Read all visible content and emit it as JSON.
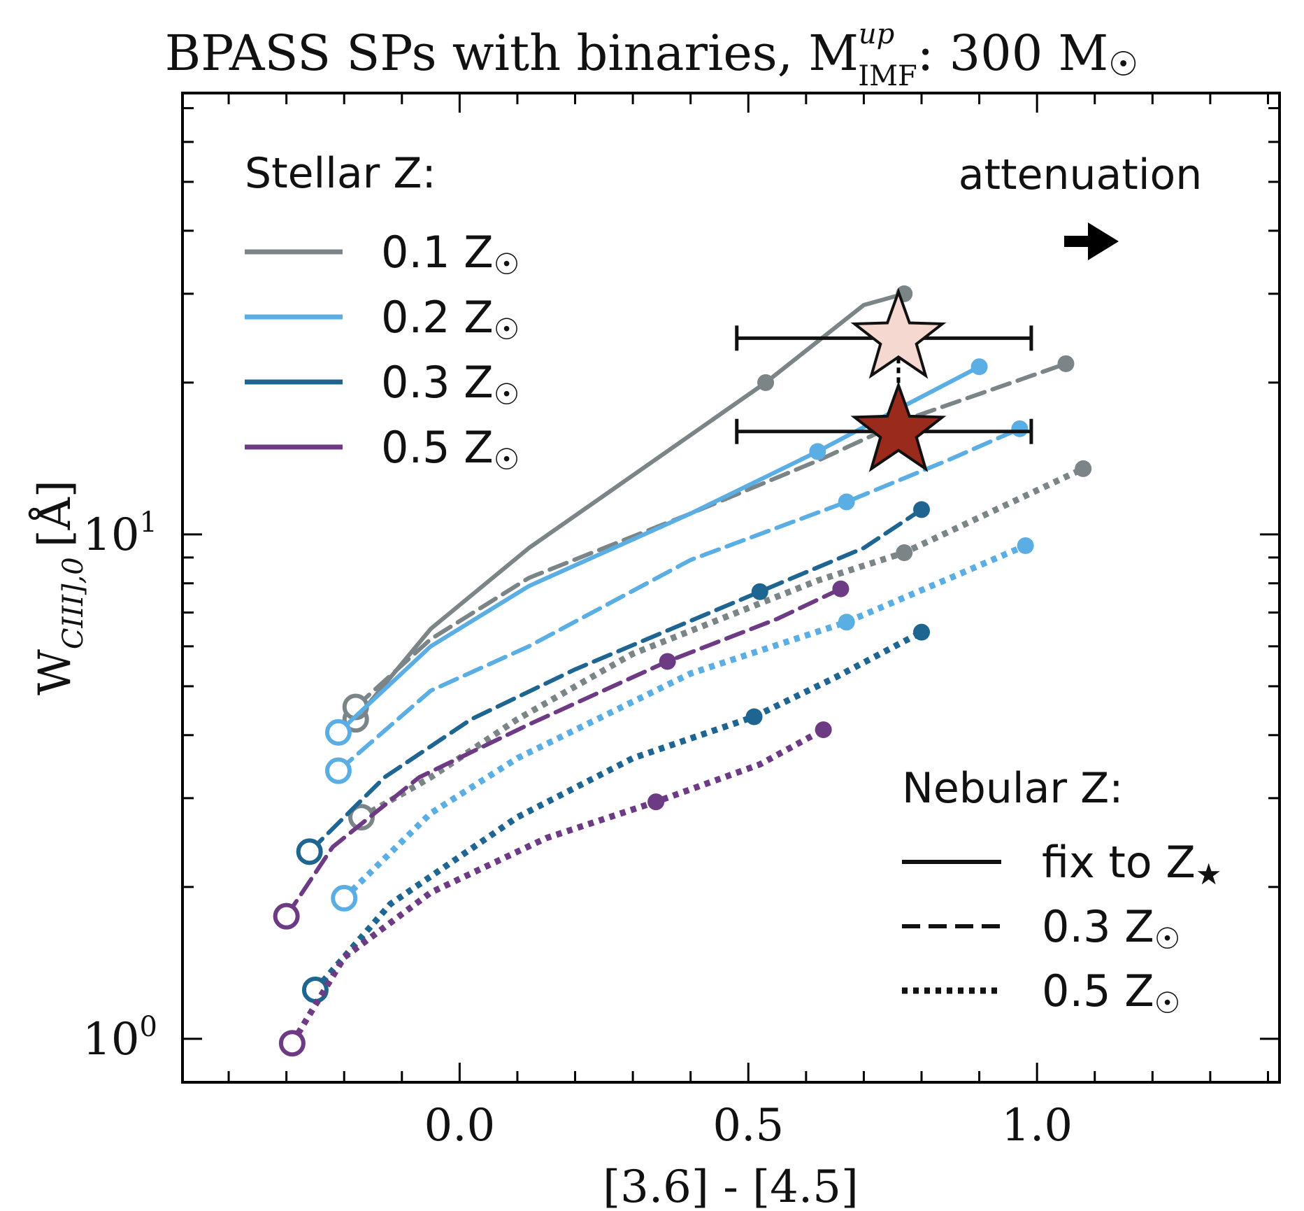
{
  "chart_data": {
    "type": "line",
    "title": {
      "main": "BPASS SPs with binaries, M",
      "sup": "up",
      "sub": "IMF",
      "tail": ": 300 M"
    },
    "xlabel": "[3.6] - [4.5]",
    "ylabel": {
      "main": "W",
      "sub": "CIII],0",
      "bracket": "[Å]"
    },
    "xlim": [
      -0.48,
      1.42
    ],
    "ylim": [
      0.82,
      75
    ],
    "yscale": "log",
    "x_ticks": [
      {
        "value": 0.0,
        "label": "0.0"
      },
      {
        "value": 0.5,
        "label": "0.5"
      },
      {
        "value": 1.0,
        "label": "1.0"
      }
    ],
    "y_ticks": [
      {
        "value": 1,
        "base": "10",
        "exp": "0"
      },
      {
        "value": 10,
        "base": "10",
        "exp": "1"
      }
    ],
    "legend_stellar": {
      "title": "Stellar Z:",
      "placement": "top-left",
      "items": [
        {
          "label": "0.1 Z",
          "color": "#7b8587"
        },
        {
          "label": "0.2 Z",
          "color": "#5aaee3"
        },
        {
          "label": "0.3 Z",
          "color": "#1f6591"
        },
        {
          "label": "0.5 Z",
          "color": "#6d3a84"
        }
      ]
    },
    "legend_nebular": {
      "title": "Nebular Z:",
      "placement": "bottom-right",
      "items": [
        {
          "label": "fix to Z",
          "suffix": "star",
          "style": "solid"
        },
        {
          "label": "0.3 Z",
          "suffix": "sun",
          "style": "dashed"
        },
        {
          "label": "0.5 Z",
          "suffix": "sun",
          "style": "dotted"
        }
      ]
    },
    "annotation": {
      "text": "attenuation",
      "arrow": "right"
    },
    "series": [
      {
        "stellar": "0.1 Z",
        "nebular": "fix",
        "color": "#7b8587",
        "style": "solid",
        "points": [
          [
            -0.18,
            4.3
          ],
          [
            -0.05,
            6.5
          ],
          [
            0.12,
            9.4
          ],
          [
            0.53,
            20.0
          ],
          [
            0.7,
            28.5
          ],
          [
            0.77,
            30.0
          ]
        ],
        "start": [
          -0.18,
          4.3
        ],
        "markers": [
          [
            0.53,
            20.0
          ],
          [
            0.77,
            30.0
          ]
        ]
      },
      {
        "stellar": "0.1 Z",
        "nebular": "0.3 Z",
        "color": "#7b8587",
        "style": "dashed",
        "points": [
          [
            -0.18,
            4.55
          ],
          [
            -0.05,
            6.2
          ],
          [
            0.12,
            8.2
          ],
          [
            0.4,
            11.0
          ],
          [
            0.62,
            14.0
          ],
          [
            0.78,
            17.0
          ],
          [
            1.05,
            21.8
          ]
        ],
        "start": [
          -0.18,
          4.55
        ],
        "markers": [
          [
            1.05,
            21.8
          ]
        ]
      },
      {
        "stellar": "0.1 Z",
        "nebular": "0.5 Z",
        "color": "#7b8587",
        "style": "dotted",
        "points": [
          [
            -0.17,
            2.75
          ],
          [
            -0.05,
            3.3
          ],
          [
            0.1,
            4.3
          ],
          [
            0.3,
            5.8
          ],
          [
            0.62,
            8.1
          ],
          [
            0.77,
            9.2
          ],
          [
            1.08,
            13.5
          ]
        ],
        "start": [
          -0.17,
          2.75
        ],
        "markers": [
          [
            0.77,
            9.2
          ],
          [
            1.08,
            13.5
          ]
        ]
      },
      {
        "stellar": "0.2 Z",
        "nebular": "fix",
        "color": "#5aaee3",
        "style": "solid",
        "points": [
          [
            -0.21,
            4.05
          ],
          [
            -0.05,
            6.0
          ],
          [
            0.12,
            7.9
          ],
          [
            0.4,
            11.0
          ],
          [
            0.62,
            14.6
          ],
          [
            0.75,
            17.5
          ],
          [
            0.9,
            21.5
          ]
        ],
        "start": [
          -0.21,
          4.05
        ],
        "markers": [
          [
            0.62,
            14.6
          ],
          [
            0.9,
            21.5
          ]
        ]
      },
      {
        "stellar": "0.2 Z",
        "nebular": "0.3 Z",
        "color": "#5aaee3",
        "style": "dashed",
        "points": [
          [
            -0.21,
            3.4
          ],
          [
            -0.05,
            4.9
          ],
          [
            0.12,
            6.0
          ],
          [
            0.4,
            8.9
          ],
          [
            0.67,
            11.6
          ],
          [
            0.85,
            14.1
          ],
          [
            0.97,
            16.2
          ]
        ],
        "start": [
          -0.21,
          3.4
        ],
        "markers": [
          [
            0.67,
            11.6
          ],
          [
            0.97,
            16.2
          ]
        ]
      },
      {
        "stellar": "0.2 Z",
        "nebular": "0.5 Z",
        "color": "#5aaee3",
        "style": "dotted",
        "points": [
          [
            -0.2,
            1.9
          ],
          [
            -0.05,
            2.8
          ],
          [
            0.1,
            3.6
          ],
          [
            0.4,
            5.3
          ],
          [
            0.67,
            6.7
          ],
          [
            0.85,
            8.2
          ],
          [
            0.98,
            9.5
          ]
        ],
        "start": [
          -0.2,
          1.9
        ],
        "markers": [
          [
            0.67,
            6.7
          ],
          [
            0.98,
            9.5
          ]
        ]
      },
      {
        "stellar": "0.3 Z",
        "nebular": "0.3 Z",
        "color": "#1f6591",
        "style": "dashed",
        "points": [
          [
            -0.26,
            2.35
          ],
          [
            -0.13,
            3.3
          ],
          [
            0.02,
            4.3
          ],
          [
            0.2,
            5.4
          ],
          [
            0.52,
            7.7
          ],
          [
            0.7,
            9.4
          ],
          [
            0.8,
            11.2
          ]
        ],
        "start": [
          -0.26,
          2.35
        ],
        "markers": [
          [
            0.52,
            7.7
          ],
          [
            0.8,
            11.2
          ]
        ]
      },
      {
        "stellar": "0.3 Z",
        "nebular": "0.5 Z",
        "color": "#1f6591",
        "style": "dotted",
        "points": [
          [
            -0.25,
            1.25
          ],
          [
            -0.12,
            1.85
          ],
          [
            0.1,
            2.75
          ],
          [
            0.3,
            3.6
          ],
          [
            0.51,
            4.35
          ],
          [
            0.65,
            5.2
          ],
          [
            0.8,
            6.4
          ]
        ],
        "start": [
          -0.25,
          1.25
        ],
        "markers": [
          [
            0.51,
            4.35
          ],
          [
            0.8,
            6.4
          ]
        ]
      },
      {
        "stellar": "0.5 Z",
        "nebular": "0.3 Z",
        "color": "#6d3a84",
        "style": "dashed",
        "points": [
          [
            -0.3,
            1.75
          ],
          [
            -0.22,
            2.4
          ],
          [
            -0.07,
            3.3
          ],
          [
            0.12,
            4.2
          ],
          [
            0.36,
            5.6
          ],
          [
            0.55,
            6.8
          ],
          [
            0.66,
            7.8
          ]
        ],
        "start": [
          -0.3,
          1.75
        ],
        "markers": [
          [
            0.36,
            5.6
          ],
          [
            0.66,
            7.8
          ]
        ]
      },
      {
        "stellar": "0.5 Z",
        "nebular": "0.5 Z",
        "color": "#6d3a84",
        "style": "dotted",
        "points": [
          [
            -0.29,
            0.98
          ],
          [
            -0.2,
            1.45
          ],
          [
            -0.05,
            1.95
          ],
          [
            0.15,
            2.5
          ],
          [
            0.34,
            2.95
          ],
          [
            0.52,
            3.5
          ],
          [
            0.63,
            4.1
          ]
        ],
        "start": [
          -0.29,
          0.98
        ],
        "markers": [
          [
            0.34,
            2.95
          ],
          [
            0.63,
            4.1
          ]
        ]
      }
    ],
    "observations": [
      {
        "x": 0.76,
        "y": 24.5,
        "xerr_low": 0.48,
        "xerr_high": 0.99,
        "fill": "#f5d9d0"
      },
      {
        "x": 0.76,
        "y": 16.0,
        "xerr_low": 0.48,
        "xerr_high": 0.99,
        "fill": "#9a2a1c"
      }
    ]
  }
}
